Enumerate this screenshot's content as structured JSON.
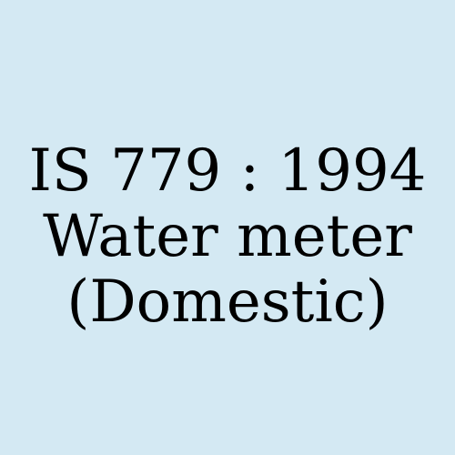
{
  "background_color": "#d4e9f3",
  "text_color": "#000000",
  "title": {
    "standard_number": "IS 779 : 1994",
    "line2": "Water meter",
    "line3": "(Domestic)"
  }
}
